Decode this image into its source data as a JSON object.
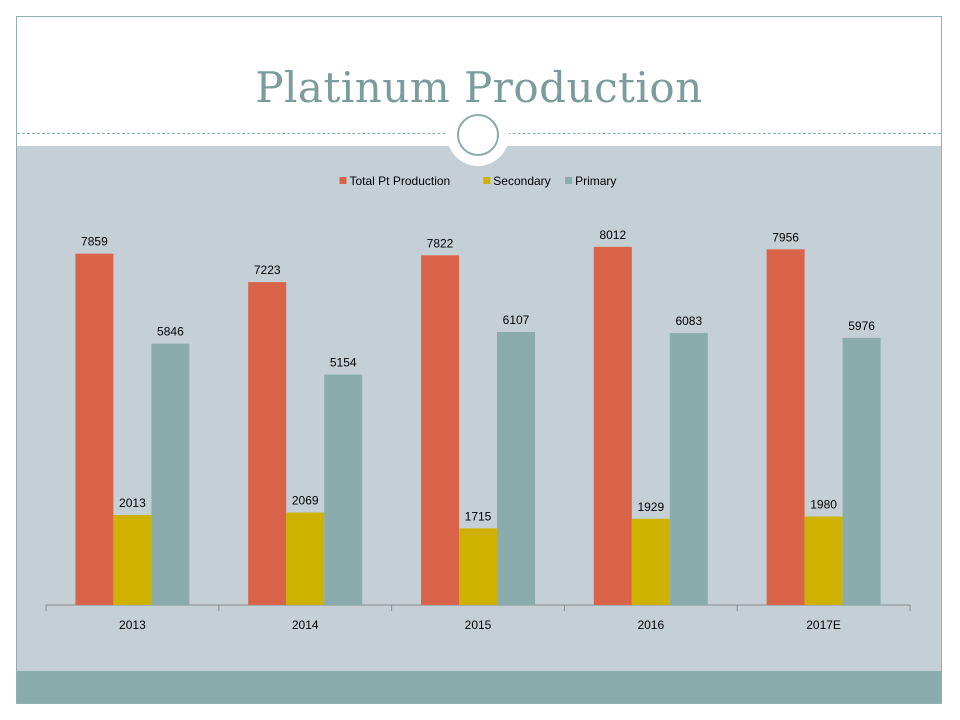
{
  "slide": {
    "title": "Platinum Production",
    "colors": {
      "title": "#7b9c9c",
      "content_background": "#c5d0d6",
      "footer_band": "#8bacac",
      "frame": "#8fb0b0"
    }
  },
  "chart_data": {
    "type": "bar",
    "categories": [
      "2013",
      "2014",
      "2015",
      "2016",
      "2017E"
    ],
    "series": [
      {
        "name": "Total Pt Production",
        "color": "#d9644a",
        "values": [
          7859,
          7223,
          7822,
          8012,
          7956
        ]
      },
      {
        "name": "Secondary",
        "color": "#cfb100",
        "values": [
          2013,
          2069,
          1715,
          1929,
          1980
        ]
      },
      {
        "name": "Primary",
        "color": "#8bacac",
        "values": [
          5846,
          5154,
          6107,
          6083,
          5976
        ]
      }
    ],
    "data_labels": true,
    "ylim": [
      0,
      8500
    ],
    "y_axis_visible": false,
    "grid": false,
    "legend_position": "top-center",
    "title": "",
    "xlabel": "",
    "ylabel": ""
  }
}
